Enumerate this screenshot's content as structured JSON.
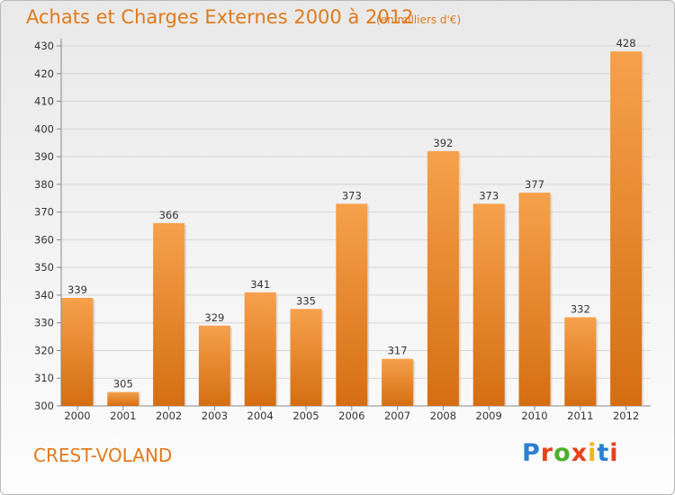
{
  "header": {
    "title": "Achats et Charges Externes 2000 à 2012",
    "subtitle": "(en milliers d'€)"
  },
  "footer": {
    "city": "CREST-VOLAND",
    "logo": {
      "letters": [
        "P",
        "r",
        "o",
        "x",
        "i",
        "t",
        "i"
      ],
      "colors": [
        "#2c7fcf",
        "#e8411b",
        "#4caf2c",
        "#e8411b",
        "#f2b418",
        "#2c7fcf",
        "#e8411b"
      ]
    }
  },
  "colors": {
    "bar_light": "#f6a14c",
    "bar_dark": "#d56e12",
    "title": "#e07a1c"
  },
  "chart_data": {
    "type": "bar",
    "categories": [
      "2000",
      "2001",
      "2002",
      "2003",
      "2004",
      "2005",
      "2006",
      "2007",
      "2008",
      "2009",
      "2010",
      "2011",
      "2012"
    ],
    "values": [
      339,
      305,
      366,
      329,
      341,
      335,
      373,
      317,
      392,
      373,
      377,
      332,
      428
    ],
    "data_labels": [
      "339",
      "305",
      "366",
      "329",
      "341",
      "335",
      "373",
      "317",
      "392",
      "373",
      "377",
      "332",
      "428"
    ],
    "y_ticks": [
      "300",
      "310",
      "320",
      "330",
      "340",
      "350",
      "360",
      "370",
      "380",
      "390",
      "400",
      "410",
      "420",
      "430"
    ],
    "ylim": [
      300,
      430
    ],
    "grid": true,
    "title": "Achats et Charges Externes 2000 à 2012",
    "xlabel": "",
    "ylabel": ""
  }
}
